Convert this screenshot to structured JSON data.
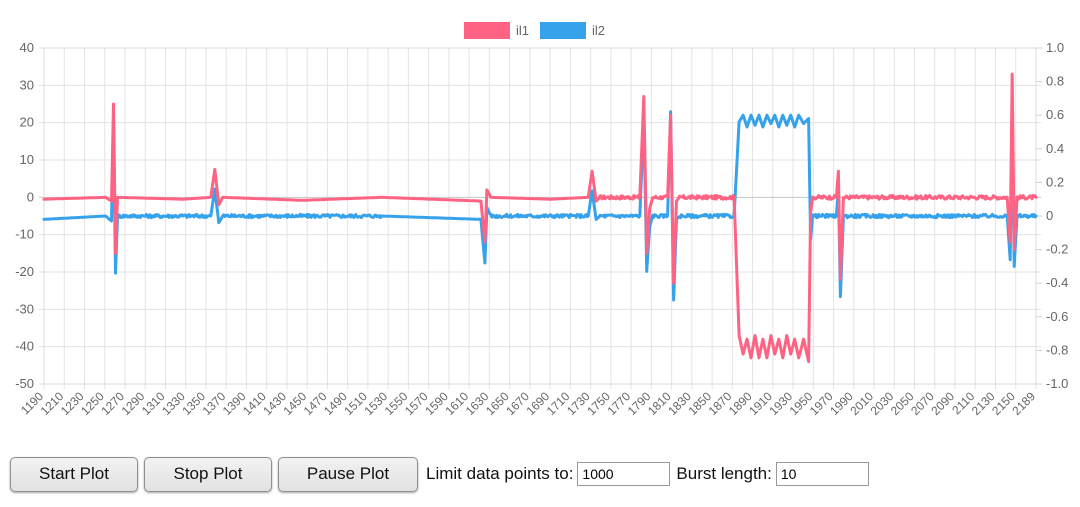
{
  "chart_data": {
    "type": "line",
    "legend_position": "top-center",
    "grid": true,
    "x": [
      1190,
      2189
    ],
    "xticks": [
      "1190",
      "1210",
      "1230",
      "1250",
      "1270",
      "1290",
      "1310",
      "1330",
      "1350",
      "1370",
      "1390",
      "1410",
      "1430",
      "1450",
      "1470",
      "1490",
      "1510",
      "1530",
      "1550",
      "1570",
      "1590",
      "1610",
      "1630",
      "1650",
      "1670",
      "1690",
      "1710",
      "1730",
      "1750",
      "1770",
      "1790",
      "1810",
      "1830",
      "1850",
      "1870",
      "1890",
      "1910",
      "1930",
      "1950",
      "1970",
      "1990",
      "2010",
      "2030",
      "2050",
      "2070",
      "2090",
      "2110",
      "2130",
      "2150",
      "2189"
    ],
    "y_left": {
      "min": -50,
      "max": 40,
      "ticks": [
        "40",
        "30",
        "20",
        "10",
        "0",
        "-10",
        "-20",
        "-30",
        "-40",
        "-50"
      ]
    },
    "y_right": {
      "min": -1.0,
      "max": 1.0,
      "ticks": [
        "1.0",
        "0.8",
        "0.6",
        "0.4",
        "0.2",
        "0",
        "-0.2",
        "-0.4",
        "-0.6",
        "-0.8",
        "-1.0"
      ]
    },
    "series": [
      {
        "name": "il1",
        "color": "#ff6384",
        "axis": "left",
        "points": [
          [
            1190,
            -0.5
          ],
          [
            1252,
            0
          ],
          [
            1258,
            -1
          ],
          [
            1260,
            25
          ],
          [
            1262,
            -15
          ],
          [
            1264,
            0
          ],
          [
            1330,
            -0.5
          ],
          [
            1358,
            0
          ],
          [
            1362,
            7.5
          ],
          [
            1366,
            -2
          ],
          [
            1370,
            0
          ],
          [
            1450,
            -0.8
          ],
          [
            1530,
            0
          ],
          [
            1630,
            -1
          ],
          [
            1634,
            -12
          ],
          [
            1636,
            2
          ],
          [
            1640,
            0
          ],
          [
            1700,
            -0.5
          ],
          [
            1738,
            0
          ],
          [
            1742,
            7
          ],
          [
            1746,
            -1
          ],
          [
            1750,
            0
          ],
          [
            1790,
            0
          ],
          [
            1794,
            27
          ],
          [
            1797,
            -15
          ],
          [
            1800,
            -3
          ],
          [
            1803,
            0
          ],
          [
            1818,
            0
          ],
          [
            1821,
            22
          ],
          [
            1824,
            -23
          ],
          [
            1827,
            -1
          ],
          [
            1830,
            0
          ],
          [
            1885,
            0
          ],
          [
            1890,
            -37
          ],
          [
            1894,
            -42
          ],
          [
            1898,
            -38
          ],
          [
            1902,
            -43
          ],
          [
            1906,
            -37
          ],
          [
            1910,
            -43
          ],
          [
            1914,
            -38
          ],
          [
            1918,
            -43
          ],
          [
            1922,
            -37
          ],
          [
            1926,
            -42
          ],
          [
            1930,
            -38
          ],
          [
            1934,
            -43
          ],
          [
            1938,
            -37
          ],
          [
            1942,
            -42
          ],
          [
            1946,
            -38
          ],
          [
            1950,
            -43
          ],
          [
            1955,
            -38
          ],
          [
            1960,
            -44
          ],
          [
            1962,
            -4
          ],
          [
            1964,
            0
          ],
          [
            1988,
            0
          ],
          [
            1990,
            7
          ],
          [
            1992,
            -22
          ],
          [
            1995,
            0
          ],
          [
            2030,
            0
          ],
          [
            2160,
            0
          ],
          [
            2163,
            -12
          ],
          [
            2165,
            33
          ],
          [
            2167,
            -14
          ],
          [
            2170,
            0
          ],
          [
            2189,
            0
          ]
        ]
      },
      {
        "name": "il2",
        "color": "#36a2eb",
        "axis": "right",
        "points": [
          [
            1190,
            -0.02
          ],
          [
            1252,
            0
          ],
          [
            1258,
            -0.03
          ],
          [
            1260,
            0.55
          ],
          [
            1262,
            -0.34
          ],
          [
            1264,
            0
          ],
          [
            1358,
            0
          ],
          [
            1362,
            0.16
          ],
          [
            1366,
            -0.04
          ],
          [
            1370,
            0
          ],
          [
            1530,
            0
          ],
          [
            1630,
            -0.02
          ],
          [
            1634,
            -0.28
          ],
          [
            1636,
            0.05
          ],
          [
            1640,
            0
          ],
          [
            1738,
            0
          ],
          [
            1742,
            0.15
          ],
          [
            1746,
            -0.02
          ],
          [
            1750,
            0
          ],
          [
            1790,
            0
          ],
          [
            1794,
            0.58
          ],
          [
            1797,
            -0.33
          ],
          [
            1800,
            -0.06
          ],
          [
            1803,
            0
          ],
          [
            1818,
            0
          ],
          [
            1821,
            0.62
          ],
          [
            1824,
            -0.5
          ],
          [
            1827,
            -0.02
          ],
          [
            1830,
            0
          ],
          [
            1885,
            0
          ],
          [
            1890,
            0.56
          ],
          [
            1894,
            0.6
          ],
          [
            1898,
            0.53
          ],
          [
            1902,
            0.6
          ],
          [
            1906,
            0.54
          ],
          [
            1910,
            0.6
          ],
          [
            1914,
            0.53
          ],
          [
            1918,
            0.6
          ],
          [
            1922,
            0.55
          ],
          [
            1926,
            0.6
          ],
          [
            1930,
            0.53
          ],
          [
            1934,
            0.6
          ],
          [
            1938,
            0.54
          ],
          [
            1942,
            0.6
          ],
          [
            1946,
            0.53
          ],
          [
            1950,
            0.6
          ],
          [
            1955,
            0.55
          ],
          [
            1960,
            0.58
          ],
          [
            1962,
            -0.14
          ],
          [
            1964,
            0
          ],
          [
            1988,
            0
          ],
          [
            1990,
            0.17
          ],
          [
            1992,
            -0.48
          ],
          [
            1995,
            0
          ],
          [
            2160,
            0
          ],
          [
            2163,
            -0.26
          ],
          [
            2165,
            0.7
          ],
          [
            2167,
            -0.3
          ],
          [
            2170,
            0
          ],
          [
            2189,
            0
          ]
        ]
      }
    ]
  },
  "controls": {
    "start_label": "Start Plot",
    "stop_label": "Stop Plot",
    "pause_label": "Pause Plot",
    "limit_label": "Limit data points to:",
    "limit_value": "1000",
    "burst_label": "Burst length:",
    "burst_value": "10"
  }
}
